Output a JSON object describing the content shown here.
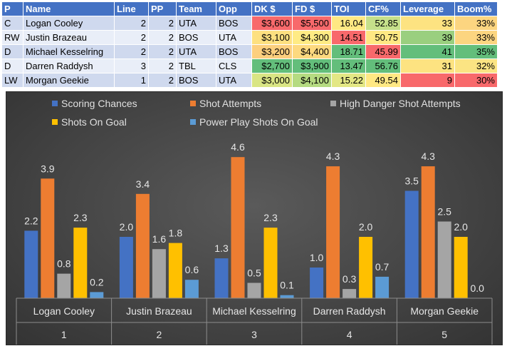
{
  "table": {
    "headers": [
      "P",
      "Name",
      "Line",
      "PP",
      "Team",
      "Opp",
      "DK $",
      "FD $",
      "TOI",
      "CF%",
      "Leverage",
      "Boom%"
    ],
    "rows": [
      [
        "C",
        "Logan Cooley",
        "2",
        "2",
        "UTA",
        "BOS",
        "$3,600",
        "$5,500",
        "16.04",
        "52.85",
        "33",
        "33%"
      ],
      [
        "RW",
        "Justin Brazeau",
        "2",
        "2",
        "BOS",
        "UTA",
        "$3,100",
        "$4,300",
        "14.51",
        "50.75",
        "39",
        "33%"
      ],
      [
        "D",
        "Michael Kesselring",
        "2",
        "2",
        "UTA",
        "BOS",
        "$3,200",
        "$4,400",
        "18.71",
        "45.99",
        "41",
        "35%"
      ],
      [
        "D",
        "Darren Raddysh",
        "3",
        "2",
        "TBL",
        "CLS",
        "$2,700",
        "$3,900",
        "13.47",
        "56.76",
        "31",
        "32%"
      ],
      [
        "LW",
        "Morgan Geekie",
        "1",
        "2",
        "BOS",
        "UTA",
        "$3,000",
        "$4,100",
        "15.22",
        "49.54",
        "9",
        "30%"
      ]
    ],
    "cell_colors": [
      [
        null,
        null,
        null,
        null,
        null,
        null,
        "#f8696b",
        "#f8696b",
        "#ffe883",
        "#c6e08a",
        "#fde381",
        "#fcd580"
      ],
      [
        null,
        null,
        null,
        null,
        null,
        null,
        "#fde080",
        "#ffeb84",
        "#f8696b",
        "#ffe883",
        "#9acf7f",
        "#fcd580"
      ],
      [
        null,
        null,
        null,
        null,
        null,
        null,
        "#fccf7e",
        "#fdd97f",
        "#63be7b",
        "#f8696b",
        "#63be7b",
        "#63be7b"
      ],
      [
        null,
        null,
        null,
        null,
        null,
        null,
        "#63be7b",
        "#63be7b",
        "#63be7b",
        "#63be7b",
        "#fde381",
        "#fbe483"
      ],
      [
        null,
        null,
        null,
        null,
        null,
        null,
        "#d9e584",
        "#b5db81",
        "#e3e784",
        "#ffe883",
        "#f8696b",
        "#f8696b"
      ]
    ]
  },
  "chart_data": {
    "type": "bar",
    "categories": [
      "Logan Cooley",
      "Justin Brazeau",
      "Michael Kesselring",
      "Darren Raddysh",
      "Morgan Geekie"
    ],
    "category_index": [
      "1",
      "2",
      "3",
      "4",
      "5"
    ],
    "series": [
      {
        "name": "Scoring Chances",
        "color": "#4472c4",
        "values": [
          2.2,
          2.0,
          1.3,
          1.0,
          3.5
        ]
      },
      {
        "name": "Shot Attempts",
        "color": "#ed7d31",
        "values": [
          3.9,
          3.4,
          4.6,
          4.3,
          4.3
        ]
      },
      {
        "name": "High Danger Shot Attempts",
        "color": "#a5a5a5",
        "values": [
          0.8,
          1.6,
          0.5,
          0.3,
          2.5
        ]
      },
      {
        "name": "Shots On Goal",
        "color": "#ffc000",
        "values": [
          2.3,
          1.8,
          2.3,
          2.0,
          2.0
        ]
      },
      {
        "name": "Power Play Shots On Goal",
        "color": "#5b9bd5",
        "values": [
          0.2,
          0.6,
          0.1,
          0.7,
          0.0
        ]
      }
    ],
    "ylim": [
      0,
      5
    ],
    "grid": false,
    "legend": "top"
  }
}
